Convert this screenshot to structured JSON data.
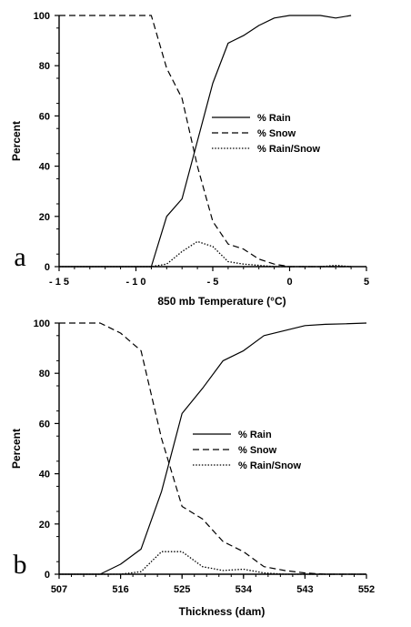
{
  "chart_data": [
    {
      "type": "line",
      "panel_label": "a",
      "xlabel": "850 mb Temperature (°C)",
      "ylabel": "Percent",
      "xlim": [
        -15,
        5
      ],
      "ylim": [
        0,
        100
      ],
      "xticks": [
        -15,
        -10,
        -5,
        0,
        5
      ],
      "xtick_labels": [
        "- 1 5",
        "- 1 0",
        "- 5",
        "0",
        "5"
      ],
      "yticks": [
        0,
        20,
        40,
        60,
        80,
        100
      ],
      "ytick_labels": [
        "0",
        "20",
        "40",
        "60",
        "80",
        "100"
      ],
      "legend_position": "center-right",
      "series": [
        {
          "name": "% Rain",
          "style": "solid",
          "x": [
            -15,
            -10,
            -9,
            -8,
            -7,
            -6,
            -5,
            -4,
            -3,
            -2,
            -1,
            0,
            1,
            2,
            3,
            4
          ],
          "y": [
            0,
            0,
            0,
            20,
            27,
            50,
            73,
            89,
            92,
            96,
            99,
            100,
            100,
            100,
            99,
            100
          ]
        },
        {
          "name": "% Snow",
          "style": "dashed",
          "x": [
            -15,
            -10,
            -9,
            -8,
            -7,
            -6,
            -5,
            -4,
            -3,
            -2,
            -1,
            0,
            1,
            2,
            3,
            4
          ],
          "y": [
            100,
            100,
            100,
            79,
            67,
            40,
            18,
            9,
            7,
            3,
            1,
            0,
            0,
            0,
            0,
            0
          ]
        },
        {
          "name": "% Rain/Snow",
          "style": "dotted",
          "x": [
            -15,
            -10,
            -9,
            -8,
            -7,
            -6,
            -5,
            -4,
            -3,
            -2,
            -1,
            0,
            1,
            2,
            3,
            4
          ],
          "y": [
            0,
            0,
            0,
            1,
            6,
            10,
            8,
            2,
            1,
            0.5,
            0,
            0,
            0,
            0,
            0.5,
            0
          ]
        }
      ]
    },
    {
      "type": "line",
      "panel_label": "b",
      "xlabel": "Thickness (dam)",
      "ylabel": "Percent",
      "xlim": [
        507,
        552
      ],
      "ylim": [
        0,
        100
      ],
      "xticks": [
        507,
        516,
        525,
        534,
        543,
        552
      ],
      "xtick_labels": [
        "507",
        "516",
        "525",
        "534",
        "543",
        "552"
      ],
      "yticks": [
        0,
        20,
        40,
        60,
        80,
        100
      ],
      "ytick_labels": [
        "0",
        "20",
        "40",
        "60",
        "80",
        "100"
      ],
      "legend_position": "center-right",
      "series": [
        {
          "name": "% Rain",
          "style": "solid",
          "x": [
            507,
            510,
            513,
            516,
            519,
            522,
            525,
            528,
            531,
            534,
            537,
            540,
            543,
            546,
            549,
            552
          ],
          "y": [
            0,
            0,
            0,
            4,
            10,
            33,
            64,
            74,
            85,
            89,
            95,
            97,
            99,
            99.5,
            99.7,
            100
          ]
        },
        {
          "name": "% Snow",
          "style": "dashed",
          "x": [
            507,
            510,
            513,
            516,
            519,
            522,
            525,
            528,
            531,
            534,
            537,
            540,
            543,
            546,
            549,
            552
          ],
          "y": [
            100,
            100,
            100,
            96,
            89,
            54,
            27,
            22,
            13,
            9,
            3,
            1.5,
            0.5,
            0,
            0,
            0
          ]
        },
        {
          "name": "% Rain/Snow",
          "style": "dotted",
          "x": [
            507,
            510,
            513,
            516,
            519,
            522,
            525,
            528,
            531,
            534,
            537,
            540,
            543,
            546,
            549,
            552
          ],
          "y": [
            0,
            0,
            0,
            0,
            1,
            9,
            9,
            3,
            1.5,
            2,
            0.5,
            0,
            0,
            0,
            0,
            0
          ]
        }
      ]
    }
  ]
}
